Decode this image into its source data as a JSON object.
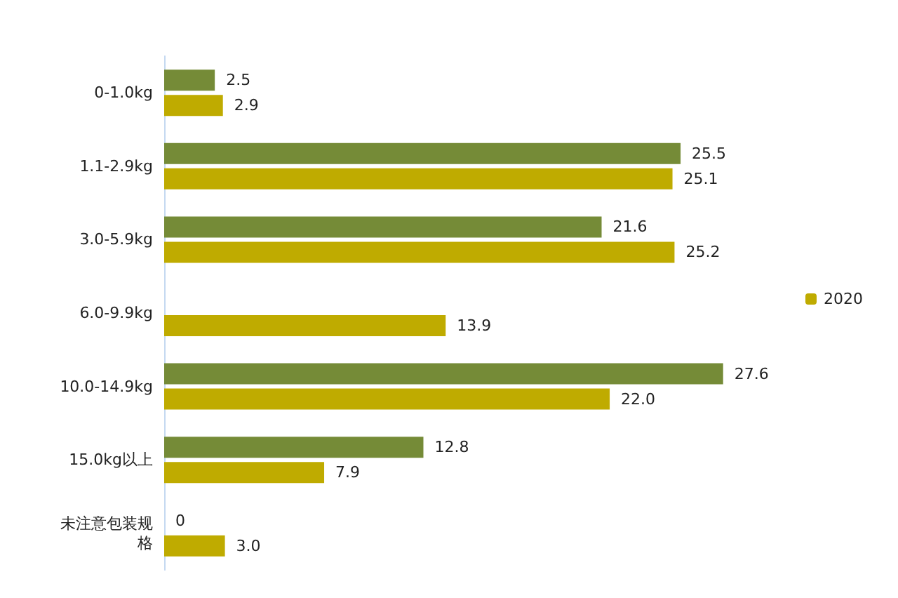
{
  "chart_data": {
    "type": "bar",
    "orientation": "horizontal",
    "tick_labels": "y",
    "legend": "right",
    "grid": false,
    "categories": [
      "0-1.0kg",
      "1.1-2.9kg",
      "3.0-5.9kg",
      "6.0-9.9kg",
      "10.0-14.9kg",
      "15.0kg以上",
      "未注意包装规格"
    ],
    "series": [
      {
        "color": "#758b37",
        "values": [
          2.5,
          25.5,
          21.6,
          null,
          27.6,
          12.8,
          0
        ],
        "value_labels": [
          "2.5",
          "25.5",
          "21.6",
          null,
          "27.6",
          "12.8",
          "0"
        ]
      },
      {
        "name": "2020",
        "color": "#bfab00",
        "values": [
          2.9,
          25.1,
          25.2,
          13.9,
          22.0,
          7.9,
          3.0
        ],
        "value_labels": [
          "2.9",
          "25.1",
          "25.2",
          "13.9",
          "22.0",
          "7.9",
          "3.0"
        ]
      }
    ]
  }
}
